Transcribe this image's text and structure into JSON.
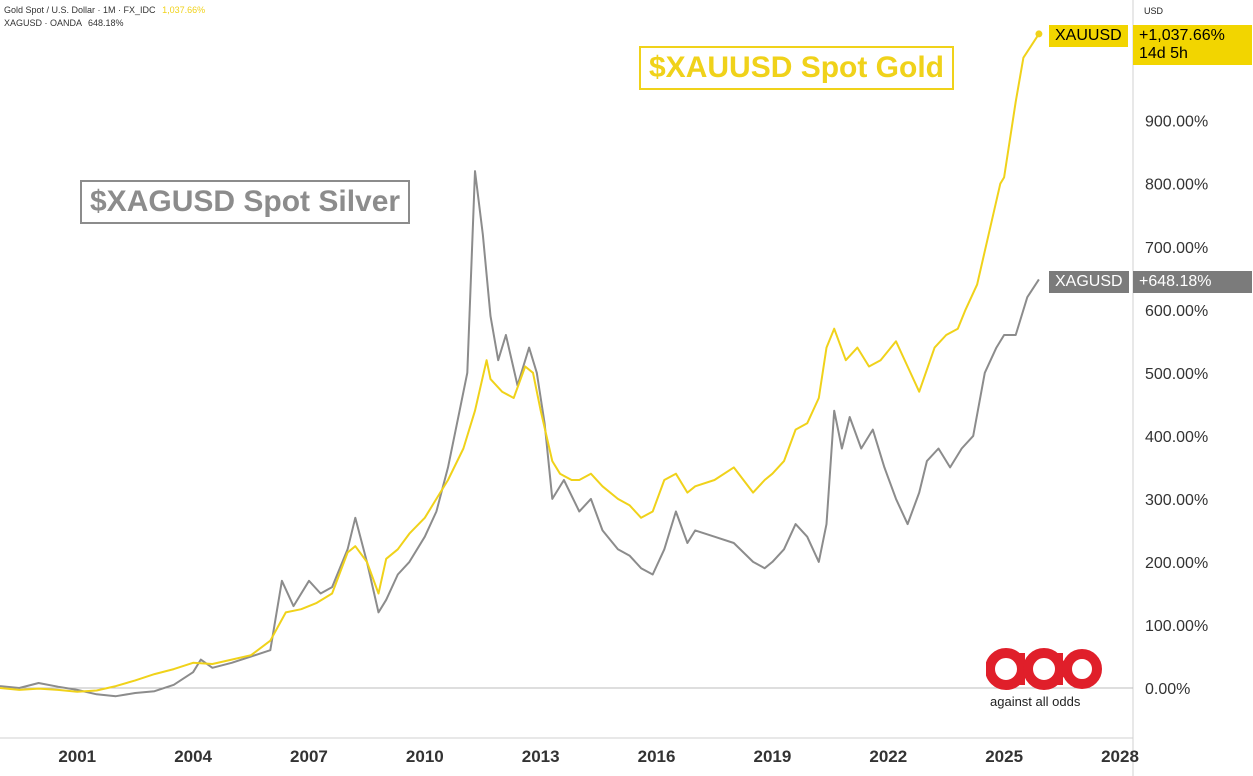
{
  "legend": {
    "line1_name": "Gold Spot / U.S. Dollar · 1M · FX_IDC",
    "line1_value": "1,037.66%",
    "line2_name": "XAGUSD · OANDA",
    "line2_value": "648.18%"
  },
  "annotations": {
    "gold_title": "$XAUUSD Spot Gold",
    "silver_title": "$XAGUSD Spot Silver"
  },
  "axis": {
    "currency": "USD"
  },
  "price_tags": {
    "gold": {
      "symbol": "XAUUSD",
      "value": "+1,037.66%",
      "countdown": "14d 5h"
    },
    "silver": {
      "symbol": "XAGUSD",
      "value": "+648.18%"
    }
  },
  "logo": {
    "caption": "against all odds"
  },
  "colors": {
    "gold": "#f0d21a",
    "silver": "#8c8c8c",
    "gold_tag_bg": "#f2d500",
    "silver_tag_bg": "#7b7b7b",
    "logo_red": "#e01f2a",
    "baseline": "#bdbdbd"
  },
  "chart_data": {
    "type": "line",
    "percent_change_scale": true,
    "grid": false,
    "xlim": [
      1999.0,
      2028.0
    ],
    "ylim": [
      -50,
      1180
    ],
    "y_ticks": [
      0,
      100,
      200,
      300,
      400,
      500,
      600,
      700,
      800,
      900
    ],
    "y_tick_labels": [
      "0.00%",
      "100.00%",
      "200.00%",
      "300.00%",
      "400.00%",
      "500.00%",
      "600.00%",
      "700.00%",
      "800.00%",
      "900.00%"
    ],
    "x_ticks": [
      2001,
      2004,
      2007,
      2010,
      2013,
      2016,
      2019,
      2022,
      2025,
      2028
    ],
    "x_tick_labels": [
      "2001",
      "2004",
      "2007",
      "2010",
      "2013",
      "2016",
      "2019",
      "2022",
      "2025",
      "2028"
    ],
    "series": [
      {
        "name": "Gold Spot / U.S. Dollar",
        "color": "#f0d21a",
        "x": [
          1999.0,
          1999.5,
          2000.0,
          2000.5,
          2001.0,
          2001.5,
          2002.0,
          2002.5,
          2003.0,
          2003.5,
          2004.0,
          2004.5,
          2005.0,
          2005.5,
          2006.0,
          2006.4,
          2006.8,
          2007.2,
          2007.6,
          2008.0,
          2008.2,
          2008.5,
          2008.8,
          2009.0,
          2009.3,
          2009.6,
          2010.0,
          2010.3,
          2010.6,
          2011.0,
          2011.3,
          2011.6,
          2011.7,
          2012.0,
          2012.3,
          2012.6,
          2012.8,
          2013.0,
          2013.3,
          2013.5,
          2013.8,
          2014.0,
          2014.3,
          2014.6,
          2015.0,
          2015.3,
          2015.6,
          2015.9,
          2016.2,
          2016.5,
          2016.8,
          2017.0,
          2017.5,
          2018.0,
          2018.5,
          2018.8,
          2019.0,
          2019.3,
          2019.6,
          2019.9,
          2020.2,
          2020.4,
          2020.6,
          2020.9,
          2021.2,
          2021.5,
          2021.8,
          2022.2,
          2022.5,
          2022.8,
          2023.2,
          2023.5,
          2023.8,
          2024.0,
          2024.3,
          2024.6,
          2024.9,
          2025.0,
          2025.3,
          2025.5,
          2025.9
        ],
        "values": [
          0,
          -3,
          -1,
          -3,
          -6,
          -4,
          3,
          12,
          22,
          30,
          40,
          38,
          45,
          52,
          75,
          120,
          125,
          135,
          150,
          215,
          225,
          200,
          150,
          205,
          220,
          245,
          270,
          300,
          330,
          380,
          440,
          520,
          490,
          470,
          460,
          510,
          500,
          440,
          360,
          340,
          330,
          330,
          340,
          320,
          300,
          290,
          270,
          280,
          330,
          340,
          310,
          320,
          330,
          350,
          310,
          330,
          340,
          360,
          410,
          420,
          460,
          540,
          570,
          520,
          540,
          510,
          520,
          550,
          510,
          470,
          540,
          560,
          570,
          600,
          640,
          720,
          800,
          810,
          930,
          1000,
          1037.66
        ]
      },
      {
        "name": "XAGUSD",
        "color": "#8c8c8c",
        "x": [
          1999.0,
          1999.5,
          2000.0,
          2000.5,
          2001.0,
          2001.5,
          2002.0,
          2002.5,
          2003.0,
          2003.5,
          2004.0,
          2004.2,
          2004.5,
          2005.0,
          2005.5,
          2006.0,
          2006.3,
          2006.6,
          2007.0,
          2007.3,
          2007.6,
          2008.0,
          2008.2,
          2008.5,
          2008.8,
          2009.0,
          2009.3,
          2009.6,
          2010.0,
          2010.3,
          2010.6,
          2010.9,
          2011.1,
          2011.3,
          2011.5,
          2011.7,
          2011.9,
          2012.1,
          2012.4,
          2012.7,
          2012.9,
          2013.1,
          2013.3,
          2013.6,
          2014.0,
          2014.3,
          2014.6,
          2015.0,
          2015.3,
          2015.6,
          2015.9,
          2016.2,
          2016.5,
          2016.8,
          2017.0,
          2017.5,
          2018.0,
          2018.5,
          2018.8,
          2019.0,
          2019.3,
          2019.6,
          2019.9,
          2020.2,
          2020.4,
          2020.6,
          2020.8,
          2021.0,
          2021.3,
          2021.6,
          2021.9,
          2022.2,
          2022.5,
          2022.8,
          2023.0,
          2023.3,
          2023.6,
          2023.9,
          2024.2,
          2024.5,
          2024.8,
          2025.0,
          2025.3,
          2025.6,
          2025.9
        ],
        "values": [
          3,
          0,
          8,
          2,
          -3,
          -10,
          -13,
          -8,
          -5,
          5,
          25,
          45,
          32,
          40,
          50,
          60,
          170,
          130,
          170,
          150,
          160,
          220,
          270,
          200,
          120,
          140,
          180,
          200,
          240,
          280,
          350,
          440,
          500,
          820,
          720,
          590,
          520,
          560,
          480,
          540,
          500,
          420,
          300,
          330,
          280,
          300,
          250,
          220,
          210,
          190,
          180,
          220,
          280,
          230,
          250,
          240,
          230,
          200,
          190,
          200,
          220,
          260,
          240,
          200,
          260,
          440,
          380,
          430,
          380,
          410,
          350,
          300,
          260,
          310,
          360,
          380,
          350,
          380,
          400,
          500,
          540,
          560,
          560,
          620,
          648.18
        ]
      }
    ]
  }
}
